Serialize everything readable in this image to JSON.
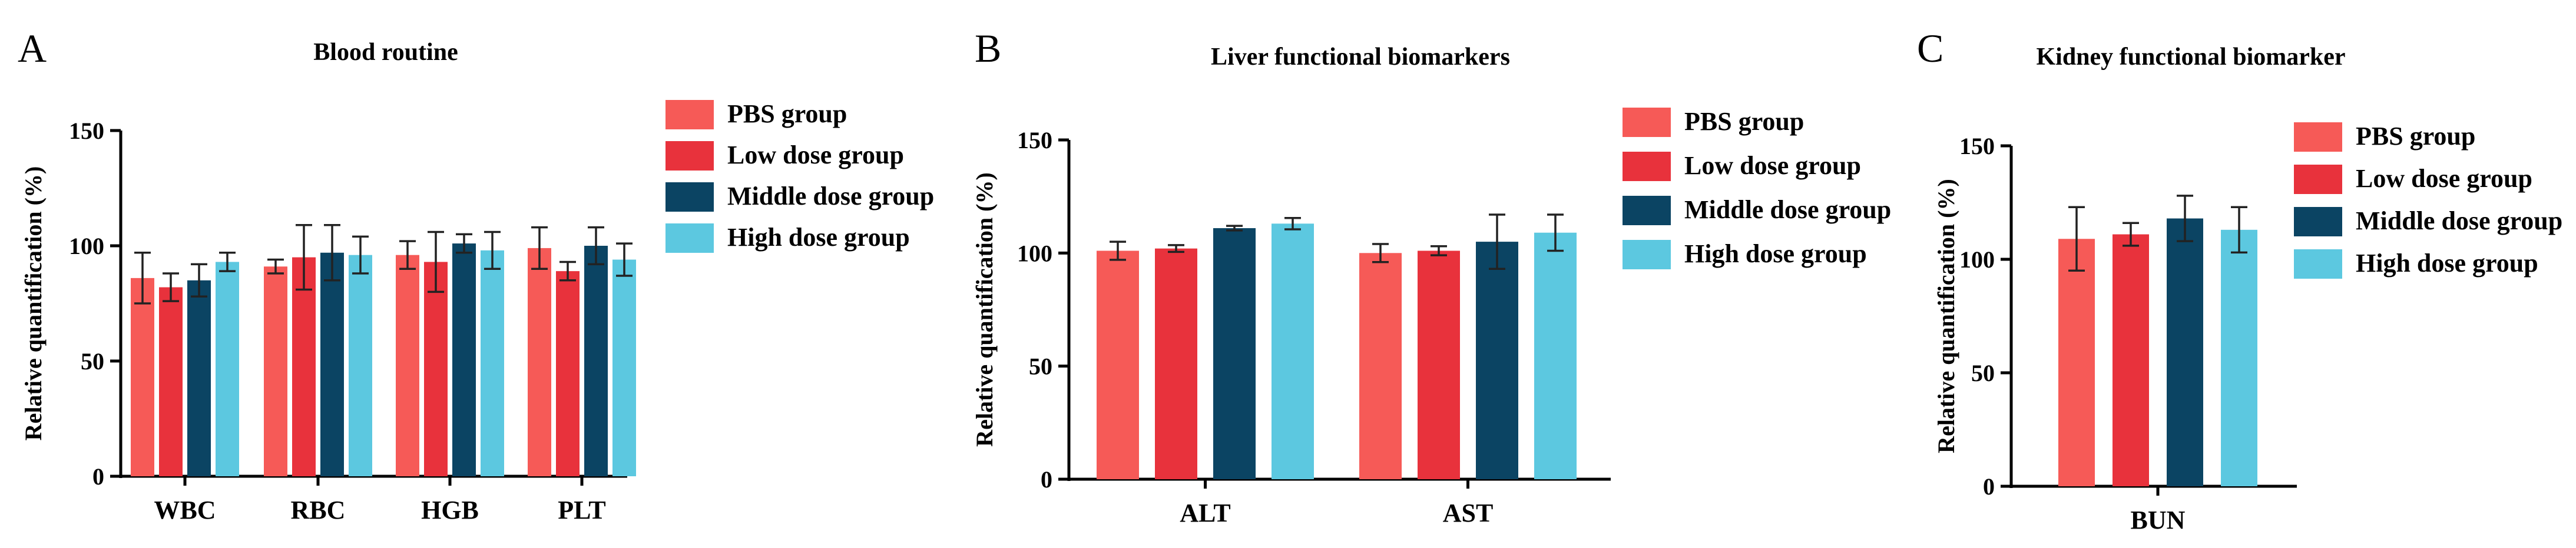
{
  "colors": {
    "PBS group": "#F65A57",
    "Low dose group": "#E8323C",
    "Middle dose group": "#0B4463",
    "High dose group": "#5CC8E0",
    "axis": "#000000",
    "errorbar": "#222222"
  },
  "chart_data": [
    {
      "panel": "A",
      "type": "bar",
      "title": "Blood routine",
      "xlabel": "",
      "ylabel": "Relative quantification (%)",
      "ylim": [
        0,
        150
      ],
      "yticks": [
        0,
        50,
        100,
        150
      ],
      "categories": [
        "WBC",
        "RBC",
        "HGB",
        "PLT"
      ],
      "legend_position": "right",
      "series": [
        {
          "name": "PBS group",
          "values": [
            86,
            91,
            96,
            99
          ],
          "errors": [
            11,
            3,
            6,
            9
          ]
        },
        {
          "name": "Low dose group",
          "values": [
            82,
            95,
            93,
            89
          ],
          "errors": [
            6,
            14,
            13,
            4
          ]
        },
        {
          "name": "Middle dose group",
          "values": [
            85,
            97,
            101,
            100
          ],
          "errors": [
            7,
            12,
            4,
            8
          ]
        },
        {
          "name": "High dose group",
          "values": [
            93,
            96,
            98,
            94
          ],
          "errors": [
            4,
            8,
            8,
            7
          ]
        }
      ]
    },
    {
      "panel": "B",
      "type": "bar",
      "title": "Liver functional biomarkers",
      "xlabel": "",
      "ylabel": "Relative quantification (%)",
      "ylim": [
        0,
        150
      ],
      "yticks": [
        0,
        50,
        100,
        150
      ],
      "categories": [
        "ALT",
        "AST"
      ],
      "legend_position": "right",
      "series": [
        {
          "name": "PBS group",
          "values": [
            101,
            100
          ],
          "errors": [
            4,
            4
          ]
        },
        {
          "name": "Low dose group",
          "values": [
            102,
            101
          ],
          "errors": [
            1.5,
            2
          ]
        },
        {
          "name": "Middle dose group",
          "values": [
            111,
            105
          ],
          "errors": [
            1,
            12
          ]
        },
        {
          "name": "High dose group",
          "values": [
            113,
            109
          ],
          "errors": [
            2.5,
            8
          ]
        }
      ]
    },
    {
      "panel": "C",
      "type": "bar",
      "title": "Kidney functional biomarker",
      "xlabel": "",
      "ylabel": "Relative quantification (%)",
      "ylim": [
        0,
        150
      ],
      "yticks": [
        0,
        50,
        100,
        150
      ],
      "categories": [
        "BUN"
      ],
      "legend_position": "right",
      "series": [
        {
          "name": "PBS group",
          "values": [
            109
          ],
          "errors": [
            14
          ]
        },
        {
          "name": "Low dose group",
          "values": [
            111
          ],
          "errors": [
            5
          ]
        },
        {
          "name": "Middle dose group",
          "values": [
            118
          ],
          "errors": [
            10
          ]
        },
        {
          "name": "High dose group",
          "values": [
            113
          ],
          "errors": [
            10
          ]
        }
      ]
    }
  ]
}
